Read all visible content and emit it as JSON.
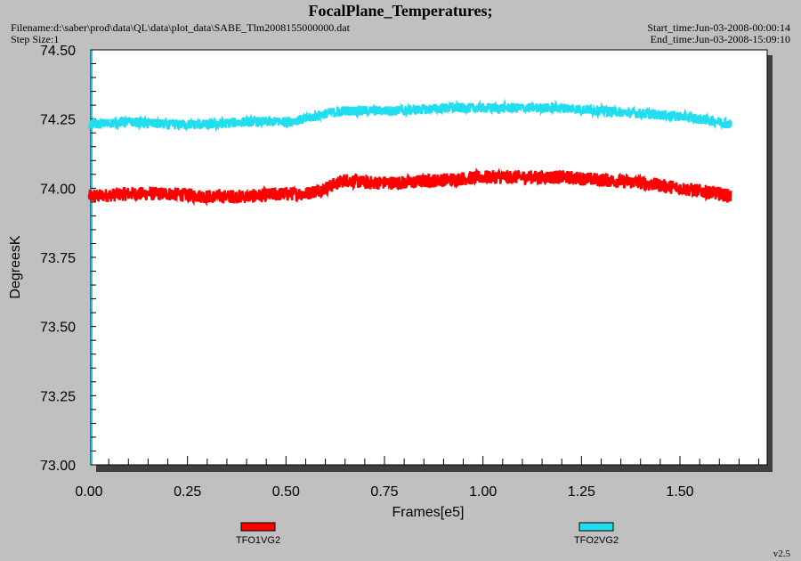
{
  "header": {
    "title": "FocalPlane_Temperatures;",
    "filename": "Filename:d:\\saber\\prod\\data\\QL\\data\\plot_data\\SABE_Tlm2008155000000.dat",
    "step_size": "Step Size:1",
    "start_time": "Start_time:Jun-03-2008-00:00:14",
    "end_time": "End_time:Jun-03-2008-15:09:10"
  },
  "version": "v2.5",
  "chart_data": {
    "type": "line",
    "title": "FocalPlane_Temperatures;",
    "xlabel": "Frames[e5]",
    "ylabel": "DegreesK",
    "xlim": [
      0,
      1.72
    ],
    "ylim": [
      73.0,
      74.5
    ],
    "x_ticks": [
      "0.00",
      "0.25",
      "0.50",
      "0.75",
      "1.00",
      "1.25",
      "1.50"
    ],
    "y_ticks": [
      "73.00",
      "73.25",
      "73.50",
      "73.75",
      "74.00",
      "74.25",
      "74.50"
    ],
    "legend_position": "bottom",
    "grid": false,
    "x": [
      0.0,
      0.1,
      0.2,
      0.3,
      0.4,
      0.5,
      0.55,
      0.6,
      0.65,
      0.7,
      0.8,
      0.9,
      1.0,
      1.1,
      1.2,
      1.3,
      1.4,
      1.5,
      1.55,
      1.6,
      1.63
    ],
    "series": [
      {
        "name": "TFO1VG2",
        "color": "#ff0000",
        "values": [
          73.97,
          73.98,
          73.98,
          73.97,
          73.97,
          73.98,
          73.98,
          74.0,
          74.03,
          74.02,
          74.02,
          74.03,
          74.04,
          74.04,
          74.04,
          74.03,
          74.02,
          74.0,
          73.99,
          73.98,
          73.97
        ],
        "spread": 0.025
      },
      {
        "name": "TFO2VG2",
        "color": "#22ddee",
        "values": [
          74.23,
          74.24,
          74.23,
          74.23,
          74.24,
          74.24,
          74.25,
          74.27,
          74.28,
          74.28,
          74.28,
          74.29,
          74.29,
          74.29,
          74.29,
          74.28,
          74.27,
          74.26,
          74.25,
          74.24,
          74.23
        ],
        "spread": 0.018
      }
    ]
  }
}
